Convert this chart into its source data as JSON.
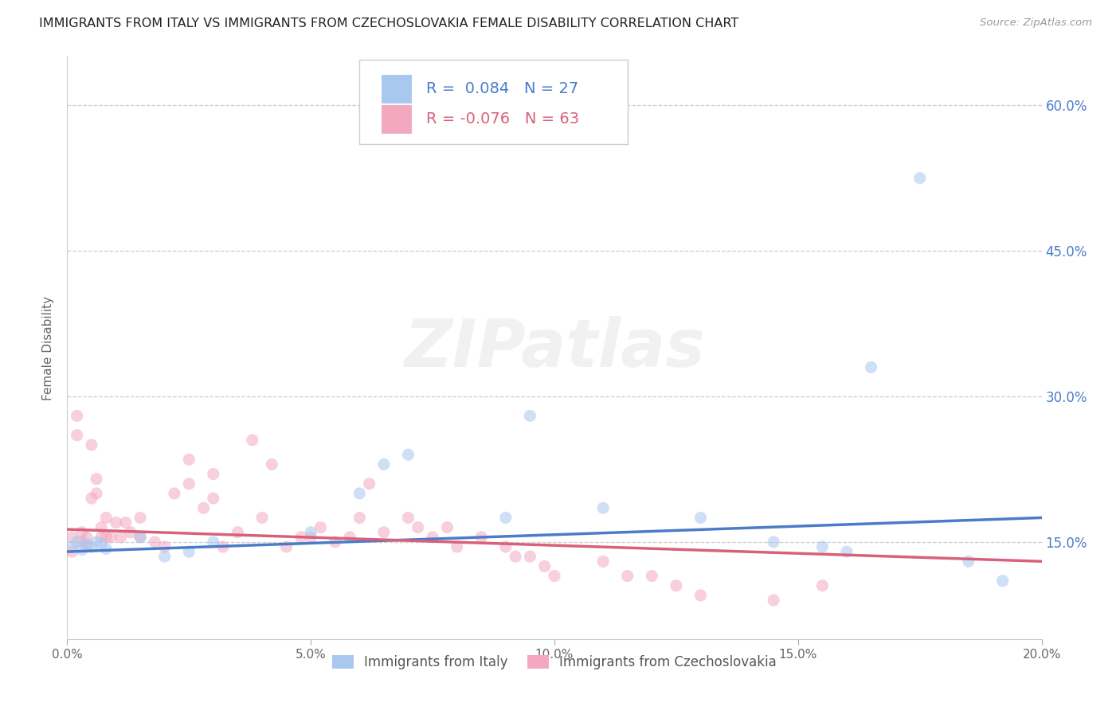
{
  "title": "IMMIGRANTS FROM ITALY VS IMMIGRANTS FROM CZECHOSLOVAKIA FEMALE DISABILITY CORRELATION CHART",
  "source": "Source: ZipAtlas.com",
  "ylabel": "Female Disability",
  "x_min": 0.0,
  "x_max": 0.2,
  "y_min": 0.05,
  "y_max": 0.65,
  "y_ticks": [
    0.15,
    0.3,
    0.45,
    0.6
  ],
  "y_tick_labels": [
    "15.0%",
    "30.0%",
    "45.0%",
    "60.0%"
  ],
  "x_ticks": [
    0.0,
    0.05,
    0.1,
    0.15,
    0.2
  ],
  "x_tick_labels": [
    "0.0%",
    "5.0%",
    "10.0%",
    "15.0%",
    "20.0%"
  ],
  "legend_label1": "Immigrants from Italy",
  "legend_label2": "Immigrants from Czechoslovakia",
  "R1": 0.084,
  "N1": 27,
  "R2": -0.076,
  "N2": 63,
  "color1": "#a8c8f0",
  "color2": "#f4a8c0",
  "line_color1": "#4a7cc9",
  "line_color2": "#d9607a",
  "watermark": "ZIPatlas",
  "background_color": "#ffffff",
  "grid_color": "#cccccc",
  "dot_size": 120,
  "dot_alpha": 0.55,
  "trendline1_start_y": 0.14,
  "trendline1_end_y": 0.175,
  "trendline2_start_y": 0.163,
  "trendline2_end_y": 0.13,
  "scatter1_x": [
    0.001,
    0.002,
    0.003,
    0.004,
    0.005,
    0.006,
    0.007,
    0.008,
    0.015,
    0.02,
    0.025,
    0.03,
    0.05,
    0.06,
    0.065,
    0.07,
    0.09,
    0.095,
    0.11,
    0.13,
    0.145,
    0.155,
    0.16,
    0.165,
    0.175,
    0.185,
    0.192
  ],
  "scatter1_y": [
    0.145,
    0.15,
    0.142,
    0.148,
    0.145,
    0.15,
    0.148,
    0.143,
    0.155,
    0.135,
    0.14,
    0.15,
    0.16,
    0.2,
    0.23,
    0.24,
    0.175,
    0.28,
    0.185,
    0.175,
    0.15,
    0.145,
    0.14,
    0.33,
    0.525,
    0.13,
    0.11
  ],
  "scatter2_x": [
    0.001,
    0.001,
    0.002,
    0.002,
    0.003,
    0.003,
    0.004,
    0.004,
    0.005,
    0.005,
    0.006,
    0.006,
    0.007,
    0.007,
    0.008,
    0.008,
    0.009,
    0.01,
    0.011,
    0.012,
    0.013,
    0.015,
    0.015,
    0.018,
    0.02,
    0.022,
    0.025,
    0.025,
    0.028,
    0.03,
    0.03,
    0.032,
    0.035,
    0.038,
    0.04,
    0.042,
    0.045,
    0.048,
    0.05,
    0.052,
    0.055,
    0.058,
    0.06,
    0.062,
    0.065,
    0.07,
    0.072,
    0.075,
    0.078,
    0.08,
    0.085,
    0.09,
    0.092,
    0.095,
    0.098,
    0.1,
    0.11,
    0.115,
    0.12,
    0.125,
    0.13,
    0.145,
    0.155
  ],
  "scatter2_y": [
    0.14,
    0.155,
    0.26,
    0.28,
    0.15,
    0.16,
    0.145,
    0.155,
    0.195,
    0.25,
    0.2,
    0.215,
    0.155,
    0.165,
    0.155,
    0.175,
    0.155,
    0.17,
    0.155,
    0.17,
    0.16,
    0.155,
    0.175,
    0.15,
    0.145,
    0.2,
    0.21,
    0.235,
    0.185,
    0.195,
    0.22,
    0.145,
    0.16,
    0.255,
    0.175,
    0.23,
    0.145,
    0.155,
    0.155,
    0.165,
    0.15,
    0.155,
    0.175,
    0.21,
    0.16,
    0.175,
    0.165,
    0.155,
    0.165,
    0.145,
    0.155,
    0.145,
    0.135,
    0.135,
    0.125,
    0.115,
    0.13,
    0.115,
    0.115,
    0.105,
    0.095,
    0.09,
    0.105
  ]
}
